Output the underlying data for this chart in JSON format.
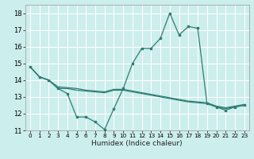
{
  "title": "",
  "xlabel": "Humidex (Indice chaleur)",
  "ylabel": "",
  "bg_color": "#cceeed",
  "grid_color": "#ffffff",
  "line_color": "#2e7d72",
  "xlim": [
    -0.5,
    23.5
  ],
  "ylim": [
    11,
    18.5
  ],
  "yticks": [
    11,
    12,
    13,
    14,
    15,
    16,
    17,
    18
  ],
  "xticks": [
    0,
    1,
    2,
    3,
    4,
    5,
    6,
    7,
    8,
    9,
    10,
    11,
    12,
    13,
    14,
    15,
    16,
    17,
    18,
    19,
    20,
    21,
    22,
    23
  ],
  "series1_x": [
    0,
    1,
    2,
    3,
    4,
    5,
    6,
    7,
    8,
    9,
    10,
    11,
    12,
    13,
    14,
    15,
    16,
    17,
    18,
    19,
    20,
    21,
    22,
    23
  ],
  "series1_y": [
    14.8,
    14.2,
    14.0,
    13.5,
    13.2,
    11.8,
    11.8,
    11.5,
    11.05,
    12.3,
    13.5,
    15.0,
    15.9,
    15.9,
    16.5,
    18.0,
    16.7,
    17.2,
    17.1,
    12.6,
    12.4,
    12.2,
    12.4,
    12.5
  ],
  "series2_x": [
    0,
    1,
    2,
    3,
    4,
    5,
    6,
    7,
    8,
    9,
    10,
    11,
    12,
    13,
    14,
    15,
    16,
    17,
    18,
    19,
    20,
    21,
    22,
    23
  ],
  "series2_y": [
    14.8,
    14.2,
    14.0,
    13.5,
    13.5,
    13.4,
    13.35,
    13.3,
    13.25,
    13.4,
    13.4,
    13.3,
    13.2,
    13.1,
    13.0,
    12.9,
    12.8,
    12.7,
    12.65,
    12.6,
    12.4,
    12.3,
    12.4,
    12.5
  ],
  "series3_x": [
    0,
    1,
    2,
    3,
    4,
    5,
    6,
    7,
    8,
    9,
    10,
    11,
    12,
    13,
    14,
    15,
    16,
    17,
    18,
    19,
    20,
    21,
    22,
    23
  ],
  "series3_y": [
    14.8,
    14.2,
    14.0,
    13.6,
    13.55,
    13.5,
    13.4,
    13.35,
    13.3,
    13.45,
    13.45,
    13.35,
    13.25,
    13.15,
    13.05,
    12.95,
    12.85,
    12.75,
    12.7,
    12.65,
    12.45,
    12.35,
    12.45,
    12.55
  ]
}
